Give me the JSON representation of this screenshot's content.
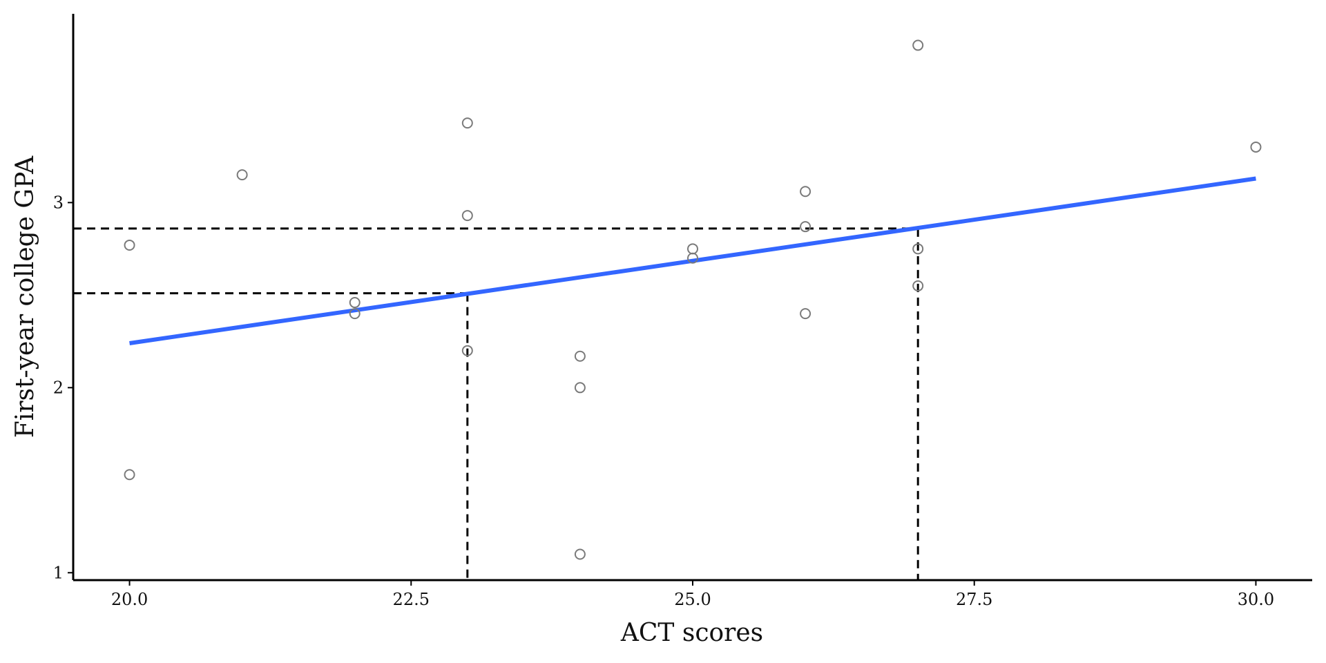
{
  "chart_data": {
    "type": "scatter",
    "title": "",
    "xlabel": "ACT scores",
    "ylabel": "First-year college GPA",
    "xlim": [
      19.5,
      30.5
    ],
    "ylim": [
      0.96,
      4.02
    ],
    "x_ticks": [
      20.0,
      22.5,
      25.0,
      27.5,
      30.0
    ],
    "x_tick_labels": [
      "20.0",
      "22.5",
      "25.0",
      "27.5",
      "30.0"
    ],
    "y_ticks": [
      1,
      2,
      3
    ],
    "y_tick_labels": [
      "1",
      "2",
      "3"
    ],
    "grid": false,
    "points": [
      {
        "x": 20,
        "y": 2.77
      },
      {
        "x": 20,
        "y": 1.53
      },
      {
        "x": 21,
        "y": 3.15
      },
      {
        "x": 22,
        "y": 2.46
      },
      {
        "x": 22,
        "y": 2.4
      },
      {
        "x": 23,
        "y": 3.43
      },
      {
        "x": 23,
        "y": 2.93
      },
      {
        "x": 23,
        "y": 2.2
      },
      {
        "x": 24,
        "y": 2.17
      },
      {
        "x": 24,
        "y": 2.0
      },
      {
        "x": 24,
        "y": 1.1
      },
      {
        "x": 25,
        "y": 2.75
      },
      {
        "x": 25,
        "y": 2.7
      },
      {
        "x": 26,
        "y": 3.06
      },
      {
        "x": 26,
        "y": 2.87
      },
      {
        "x": 26,
        "y": 2.4
      },
      {
        "x": 27,
        "y": 3.85
      },
      {
        "x": 27,
        "y": 2.75
      },
      {
        "x": 27,
        "y": 2.55
      },
      {
        "x": 30,
        "y": 3.3
      }
    ],
    "fit_line": {
      "x": [
        20,
        30
      ],
      "y": [
        2.24,
        3.13
      ],
      "color": "#3366ff"
    },
    "reference_lines": [
      {
        "x": 23,
        "y": 2.51
      },
      {
        "x": 27,
        "y": 2.86
      }
    ],
    "point_color": "#7a7a7a"
  }
}
